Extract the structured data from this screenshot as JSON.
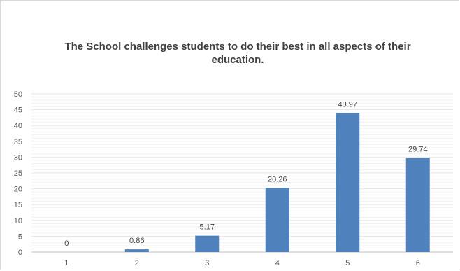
{
  "chart_data": {
    "type": "bar",
    "title": "The School challenges students to do their best in all aspects of their education.",
    "categories": [
      "1",
      "2",
      "3",
      "4",
      "5",
      "6"
    ],
    "values": [
      0,
      0.86,
      5.17,
      20.26,
      43.97,
      29.74
    ],
    "data_labels": [
      "0",
      "0.86",
      "5.17",
      "20.26",
      "43.97",
      "29.74"
    ],
    "yticks": [
      "0",
      "5",
      "10",
      "15",
      "20",
      "25",
      "30",
      "35",
      "40",
      "45",
      "50"
    ],
    "ylim": [
      0,
      50
    ],
    "grid": true,
    "bar_color": "#4f81bd",
    "gridline_color": "#e6e6e6"
  }
}
